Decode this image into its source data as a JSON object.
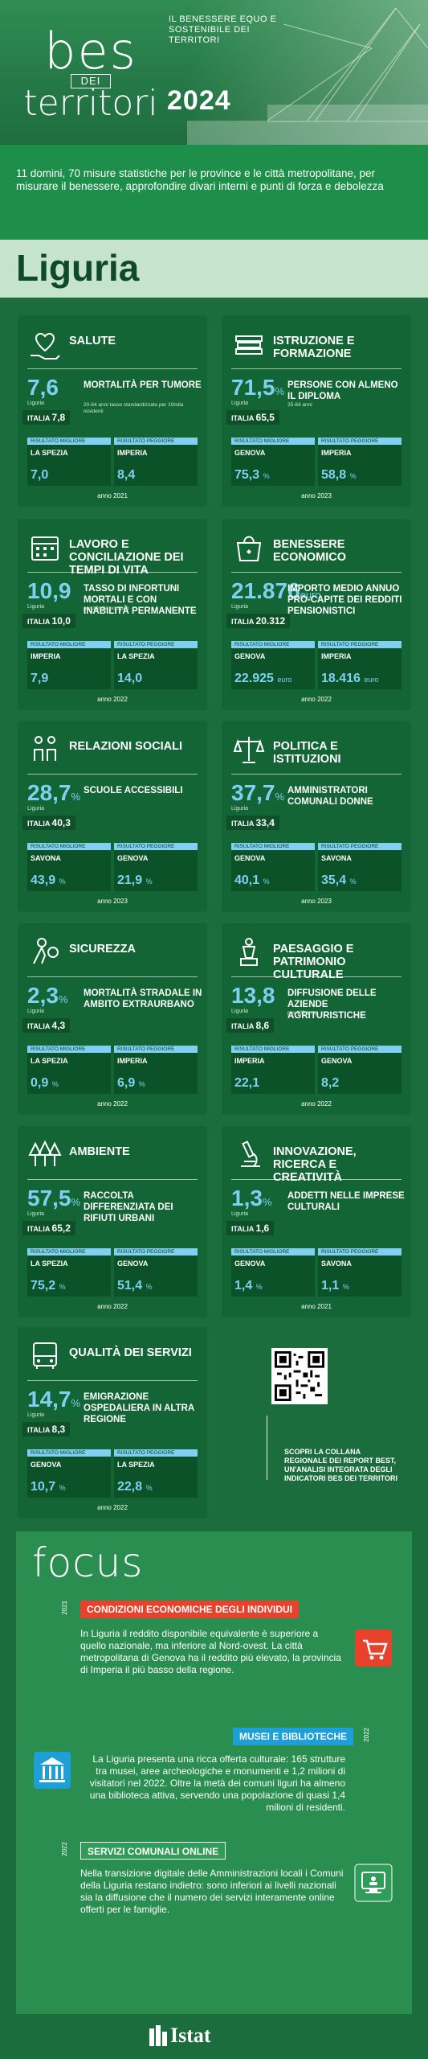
{
  "header": {
    "logo_top": "bes",
    "logo_mid": "DEI",
    "logo_bottom": "territori",
    "tagline": "IL BENESSERE EQUO E SOSTENIBILE DEI TERRITORI",
    "year": "2024"
  },
  "intro": "11 domini, 70 misure statistiche per le province e le città metropolitane, per misurare il benessere, approfondire divari interni e punti di forza e debolezza",
  "region": "Liguria",
  "result_best_label": "RISULTATO MIGLIORE",
  "result_worst_label": "RISULTATO PEGGIORE",
  "italia_label": "ITALIA",
  "cards": [
    {
      "icon": "heart-hand-icon",
      "title": "SALUTE",
      "value": "7,6",
      "unit": "",
      "reg": "Liguria",
      "italia": "7,8",
      "indicator": "MORTALITÀ PER TUMORE",
      "note": "20-64 anni\ntasso standardizzato per 10mila residenti",
      "best_name": "LA SPEZIA",
      "best_val": "7,0",
      "best_unit": "",
      "worst_name": "IMPERIA",
      "worst_val": "8,4",
      "worst_unit": "",
      "year": "anno 2021"
    },
    {
      "icon": "books-icon",
      "title": "ISTRUZIONE E FORMAZIONE",
      "value": "71,5",
      "unit": "%",
      "reg": "Liguria",
      "italia": "65,5",
      "indicator": "PERSONE CON ALMENO IL DIPLOMA",
      "note": "25-64 anni",
      "best_name": "GENOVA",
      "best_val": "75,3",
      "best_unit": "%",
      "worst_name": "IMPERIA",
      "worst_val": "58,8",
      "worst_unit": "%",
      "year": "anno 2023"
    },
    {
      "icon": "calendar-icon",
      "title": "LAVORO E CONCILIAZIONE DEI TEMPI DI VITA",
      "value": "10,9",
      "unit": "",
      "reg": "Liguria",
      "italia": "10,0",
      "indicator": "TASSO DI INFORTUNI MORTALI E CON INABILITÀ PERMANENTE",
      "note": "per 10mila occupati",
      "best_name": "IMPERIA",
      "best_val": "7,9",
      "best_unit": "",
      "worst_name": "LA SPEZIA",
      "worst_val": "14,0",
      "worst_unit": "",
      "year": "anno 2022"
    },
    {
      "icon": "shopping-bag-icon",
      "title": "BENESSERE ECONOMICO",
      "value": "21.876",
      "unit": "euro",
      "reg": "Liguria",
      "italia": "20.312",
      "indicator": "IMPORTO MEDIO ANNUO PRO-CAPITE DEI REDDITI PENSIONISTICI",
      "note": "",
      "best_name": "GENOVA",
      "best_val": "22.925",
      "best_unit": "euro",
      "worst_name": "IMPERIA",
      "worst_val": "18.416",
      "worst_unit": "euro",
      "year": "anno 2022"
    },
    {
      "icon": "people-icon",
      "title": "RELAZIONI SOCIALI",
      "value": "28,7",
      "unit": "%",
      "reg": "Liguria",
      "italia": "40,3",
      "indicator": "SCUOLE ACCESSIBILI",
      "note": "",
      "best_name": "SAVONA",
      "best_val": "43,9",
      "best_unit": "%",
      "worst_name": "GENOVA",
      "worst_val": "21,9",
      "worst_unit": "%",
      "year": "anno 2023"
    },
    {
      "icon": "scales-icon",
      "title": "POLITICA E ISTITUZIONI",
      "value": "37,7",
      "unit": "%",
      "reg": "Liguria",
      "italia": "33,4",
      "indicator": "AMMINISTRATORI COMUNALI DONNE",
      "note": "",
      "best_name": "GENOVA",
      "best_val": "40,1",
      "best_unit": "%",
      "worst_name": "SAVONA",
      "worst_val": "35,4",
      "worst_unit": "%",
      "year": "anno 2023"
    },
    {
      "icon": "thief-icon",
      "title": "SICUREZZA",
      "value": "2,3",
      "unit": "%",
      "reg": "Liguria",
      "italia": "4,3",
      "indicator": "MORTALITÀ STRADALE IN AMBITO EXTRAURBANO",
      "note": "",
      "best_name": "LA SPEZIA",
      "best_val": "0,9",
      "best_unit": "%",
      "worst_name": "IMPERIA",
      "worst_val": "6,9",
      "worst_unit": "%",
      "year": "anno 2022"
    },
    {
      "icon": "statue-icon",
      "title": "PAESAGGIO E PATRIMONIO CULTURALE",
      "value": "13,8",
      "unit": "",
      "reg": "Liguria",
      "italia": "8,6",
      "indicator": "DIFFUSIONE DELLE AZIENDE AGRITURISTICHE",
      "note": "per 100 kmq",
      "best_name": "IMPERIA",
      "best_val": "22,1",
      "best_unit": "",
      "worst_name": "GENOVA",
      "worst_val": "8,2",
      "worst_unit": "",
      "year": "anno 2022"
    },
    {
      "icon": "trees-icon",
      "title": "AMBIENTE",
      "value": "57,5",
      "unit": "%",
      "reg": "Liguria",
      "italia": "65,2",
      "indicator": "RACCOLTA DIFFERENZIATA DEI RIFIUTI URBANI",
      "note": "",
      "best_name": "LA SPEZIA",
      "best_val": "75,2",
      "best_unit": "%",
      "worst_name": "GENOVA",
      "worst_val": "51,4",
      "worst_unit": "%",
      "year": "anno 2022"
    },
    {
      "icon": "microscope-icon",
      "title": "INNOVAZIONE, RICERCA E CREATIVITÀ",
      "value": "1,3",
      "unit": "%",
      "reg": "Liguria",
      "italia": "1,6",
      "indicator": "ADDETTI NELLE IMPRESE CULTURALI",
      "note": "",
      "best_name": "GENOVA",
      "best_val": "1,4",
      "best_unit": "%",
      "worst_name": "SAVONA",
      "worst_val": "1,1",
      "worst_unit": "%",
      "year": "anno 2021"
    },
    {
      "icon": "bus-icon",
      "title": "QUALITÀ DEI SERVIZI",
      "value": "14,7",
      "unit": "%",
      "reg": "Liguria",
      "italia": "8,3",
      "indicator": "EMIGRAZIONE OSPEDALIERA IN ALTRA REGIONE",
      "note": "",
      "best_name": "GENOVA",
      "best_val": "10,7",
      "best_unit": "%",
      "worst_name": "LA SPEZIA",
      "worst_val": "22,8",
      "worst_unit": "%",
      "year": "anno 2022"
    }
  ],
  "qr_text": "SCOPRI LA COLLANA REGIONALE DEI REPORT BEST, UN'ANALISI INTEGRATA DEGLI INDICATORI BES DEI TERRITORI",
  "focus": {
    "title": "focus",
    "items": [
      {
        "year": "2021",
        "tag": "CONDIZIONI ECONOMICHE DEGLI INDIVIDUI",
        "tag_color": "#e8412c",
        "icon": "cart-icon",
        "text": "In Liguria il reddito disponibile equivalente è superiore a quello nazionale, ma inferiore al Nord-ovest. La città metropolitana di Genova ha il reddito più elevato, la provincia di Imperia il più basso della regione."
      },
      {
        "year": "2022",
        "tag": "MUSEI E BIBLIOTECHE",
        "tag_color": "#1e9fd8",
        "icon": "temple-icon",
        "text": "La Liguria presenta una ricca offerta culturale: 165 strutture tra musei, aree archeologiche e monumenti e 1,2 milioni di visitatori nel 2022. Oltre la metà dei comuni liguri ha almeno una biblioteca attiva, servendo una popolazione di quasi 1,4 milioni di residenti."
      },
      {
        "year": "2022",
        "tag": "SERVIZI COMUNALI ONLINE",
        "tag_color": "#2f9d57",
        "icon": "online-services-icon",
        "text": "Nella transizione digitale delle Amministrazioni locali i Comuni della Liguria restano indietro: sono inferiori ai livelli nazionali sia la diffusione che il numero dei servizi interamente online offerti per le famiglie."
      }
    ]
  },
  "footer": {
    "brand": "Istat"
  },
  "colors": {
    "value": "#7fd0f1",
    "card": "#136535",
    "background": "#1b6d3d"
  }
}
